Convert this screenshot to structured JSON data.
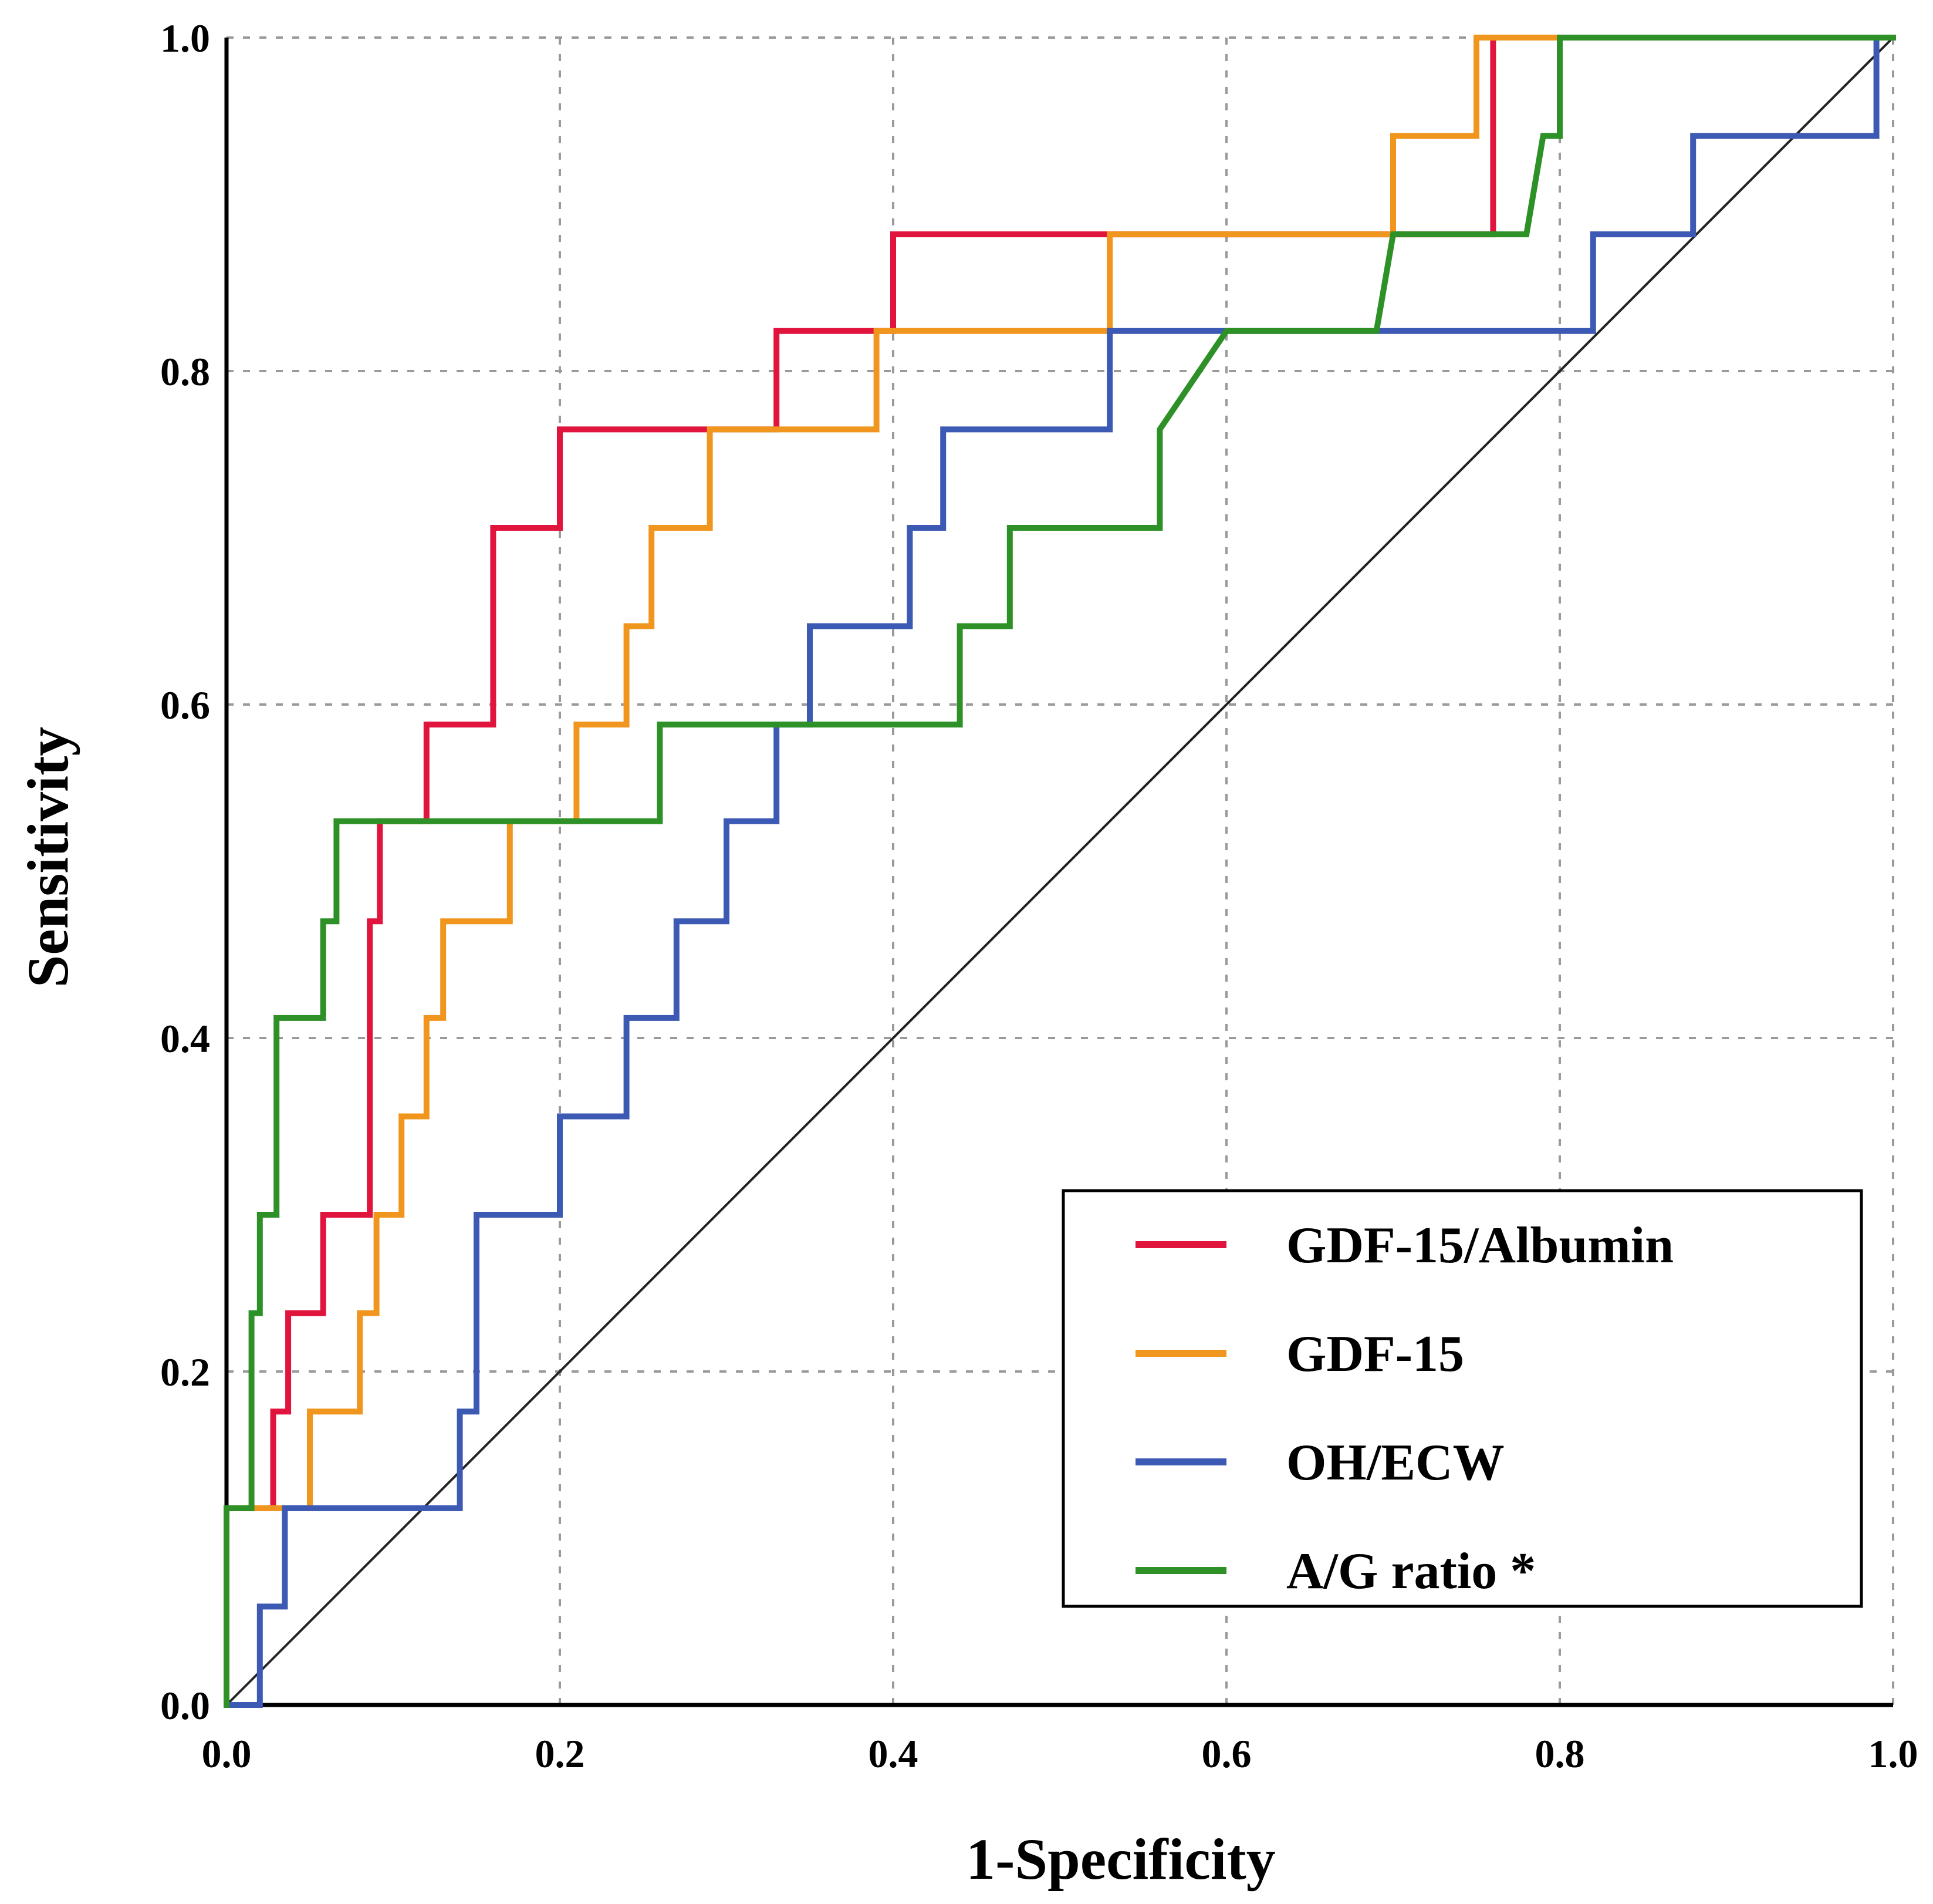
{
  "chart_data": {
    "type": "line",
    "title": "",
    "xlabel": "1-Specificity",
    "ylabel": "Sensitivity",
    "xlim": [
      0,
      1
    ],
    "ylim": [
      0,
      1
    ],
    "xticks": [
      "0.0",
      "0.2",
      "0.4",
      "0.6",
      "0.8",
      "1.0"
    ],
    "yticks": [
      "0.0",
      "0.2",
      "0.4",
      "0.6",
      "0.8",
      "1.0"
    ],
    "grid": true,
    "legend_position": "bottom-right",
    "reference_line": {
      "name": "reference",
      "x": [
        0,
        1
      ],
      "y": [
        0,
        1
      ],
      "color": "#222222"
    },
    "series": [
      {
        "name": "GDF-15/Albumin",
        "color": "#e0143c",
        "x": [
          0,
          0,
          0.028,
          0.028,
          0.037,
          0.037,
          0.058,
          0.058,
          0.086,
          0.086,
          0.092,
          0.092,
          0.12,
          0.12,
          0.16,
          0.16,
          0.2,
          0.2,
          0.29,
          0.33,
          0.33,
          0.4,
          0.4,
          0.53,
          0.76,
          0.76,
          0.8,
          1.0
        ],
        "y": [
          0,
          0.118,
          0.118,
          0.176,
          0.176,
          0.235,
          0.235,
          0.294,
          0.294,
          0.47,
          0.47,
          0.53,
          0.53,
          0.588,
          0.588,
          0.706,
          0.706,
          0.765,
          0.765,
          0.765,
          0.824,
          0.824,
          0.882,
          0.882,
          0.882,
          1.0,
          1.0,
          1.0
        ]
      },
      {
        "name": "GDF-15",
        "color": "#f0961e",
        "x": [
          0,
          0,
          0.05,
          0.05,
          0.08,
          0.08,
          0.09,
          0.09,
          0.105,
          0.105,
          0.12,
          0.12,
          0.13,
          0.13,
          0.17,
          0.17,
          0.21,
          0.21,
          0.24,
          0.24,
          0.255,
          0.255,
          0.29,
          0.29,
          0.39,
          0.39,
          0.53,
          0.53,
          0.7,
          0.7,
          0.75,
          0.75,
          0.8,
          1.0
        ],
        "y": [
          0,
          0.118,
          0.118,
          0.176,
          0.176,
          0.235,
          0.235,
          0.294,
          0.294,
          0.353,
          0.353,
          0.412,
          0.412,
          0.47,
          0.47,
          0.53,
          0.53,
          0.588,
          0.588,
          0.647,
          0.647,
          0.706,
          0.706,
          0.765,
          0.765,
          0.824,
          0.824,
          0.882,
          0.882,
          0.941,
          0.941,
          1.0,
          1.0,
          1.0
        ]
      },
      {
        "name": "OH/ECW",
        "color": "#3c5ab4",
        "x": [
          0,
          0.02,
          0.02,
          0.035,
          0.035,
          0.14,
          0.14,
          0.15,
          0.15,
          0.2,
          0.2,
          0.24,
          0.24,
          0.27,
          0.27,
          0.3,
          0.3,
          0.33,
          0.33,
          0.35,
          0.35,
          0.41,
          0.41,
          0.43,
          0.43,
          0.53,
          0.53,
          0.82,
          0.82,
          0.88,
          0.88,
          0.99,
          0.99,
          1.0
        ],
        "y": [
          0,
          0,
          0.059,
          0.059,
          0.118,
          0.118,
          0.176,
          0.176,
          0.294,
          0.294,
          0.353,
          0.353,
          0.412,
          0.412,
          0.47,
          0.47,
          0.53,
          0.53,
          0.588,
          0.588,
          0.647,
          0.647,
          0.706,
          0.706,
          0.765,
          0.765,
          0.824,
          0.824,
          0.882,
          0.882,
          0.941,
          0.941,
          1.0,
          1.0
        ]
      },
      {
        "name": "A/G ratio *",
        "color": "#2d9128",
        "x": [
          0,
          0,
          0.015,
          0.015,
          0.02,
          0.02,
          0.03,
          0.03,
          0.058,
          0.058,
          0.066,
          0.066,
          0.26,
          0.26,
          0.44,
          0.44,
          0.47,
          0.47,
          0.56,
          0.56,
          0.6,
          0.69,
          0.7,
          0.78,
          0.79,
          0.8,
          0.8,
          1.0
        ],
        "y": [
          0,
          0.118,
          0.118,
          0.235,
          0.235,
          0.294,
          0.294,
          0.412,
          0.412,
          0.47,
          0.47,
          0.53,
          0.53,
          0.588,
          0.588,
          0.647,
          0.647,
          0.706,
          0.706,
          0.765,
          0.824,
          0.824,
          0.882,
          0.882,
          0.941,
          0.941,
          1.0,
          1.0
        ]
      }
    ]
  }
}
